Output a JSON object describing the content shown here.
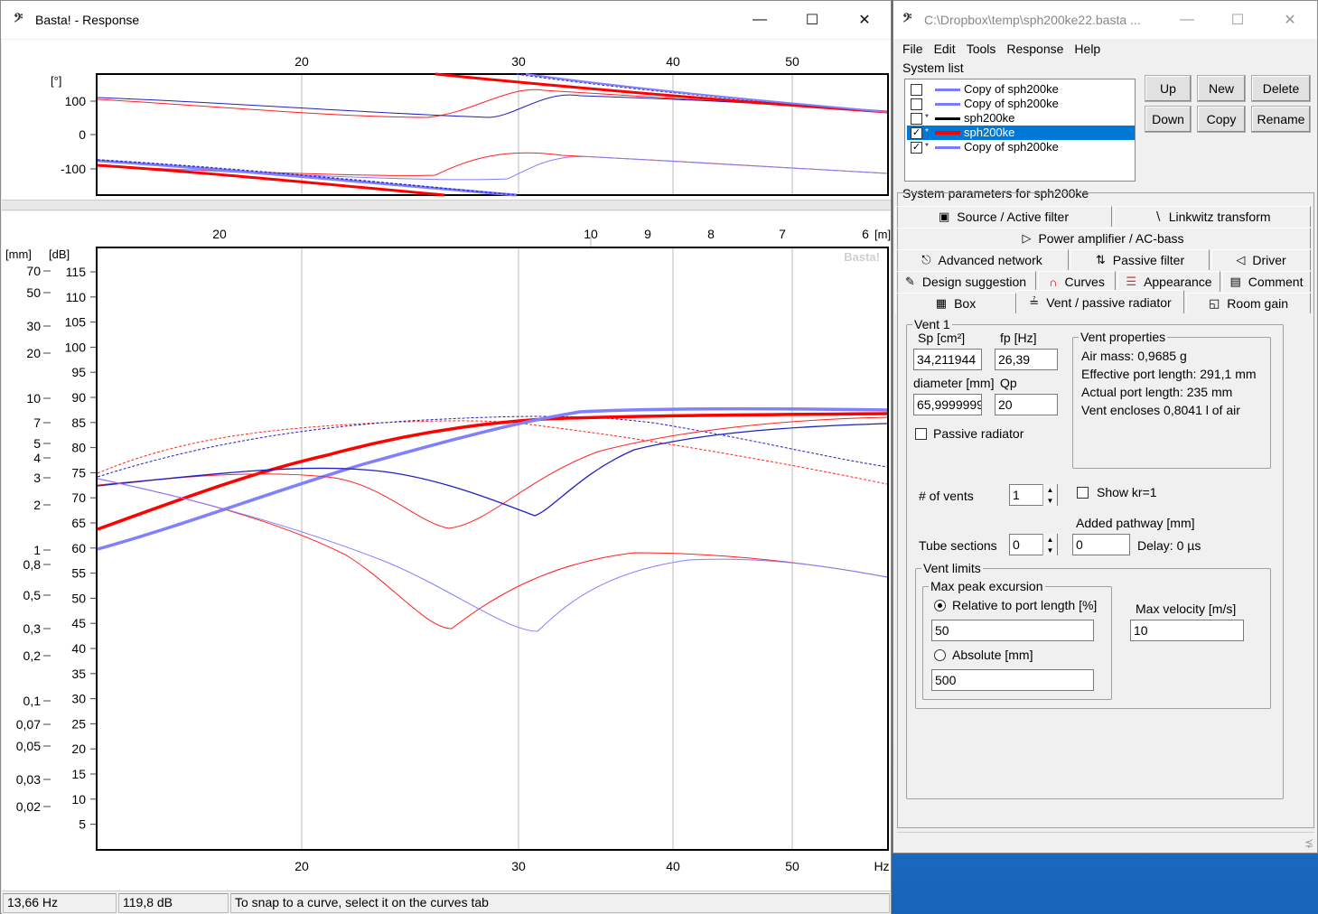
{
  "response_window": {
    "title": "Basta! - Response",
    "watermark": "Basta!",
    "phase_plot": {
      "unit_label": "[°]",
      "x_ticks_top": [
        "20",
        "30",
        "40",
        "50"
      ],
      "y_ticks": [
        "100",
        "0",
        "-100"
      ]
    },
    "main_plot": {
      "top_axis_ticks": [
        "20",
        "10",
        "9",
        "8",
        "7",
        "6"
      ],
      "top_axis_unit": "[m]",
      "left_unit_mm": "[mm]",
      "left_unit_db": "[dB]",
      "mm_ticks": [
        "70",
        "50",
        "30",
        "20",
        "10",
        "7",
        "5",
        "4",
        "3",
        "2",
        "1",
        "0,8",
        "0,5",
        "0,3",
        "0,2",
        "0,1",
        "0,07",
        "0,05",
        "0,03",
        "0,02"
      ],
      "db_ticks": [
        "115",
        "110",
        "105",
        "100",
        "95",
        "90",
        "85",
        "80",
        "75",
        "70",
        "65",
        "60",
        "55",
        "50",
        "45",
        "40",
        "35",
        "30",
        "25",
        "20",
        "15",
        "10",
        "5"
      ],
      "x_ticks": [
        "20",
        "30",
        "40",
        "50"
      ],
      "x_unit": "Hz"
    },
    "status": {
      "freq": "13,66 Hz",
      "level": "119,8 dB",
      "hint": "To snap to a curve, select it on the curves tab"
    }
  },
  "main_window": {
    "title": "C:\\Dropbox\\temp\\sph200ke22.basta ...",
    "menu": [
      "File",
      "Edit",
      "Tools",
      "Response",
      "Help"
    ],
    "system_list": {
      "label": "System list",
      "items": [
        {
          "name": "Copy of sph200ke",
          "checked": false,
          "star": "",
          "color": "#7b7bff",
          "selected": false
        },
        {
          "name": "Copy of sph200ke",
          "checked": false,
          "star": "",
          "color": "#7b7bff",
          "selected": false
        },
        {
          "name": "sph200ke",
          "checked": false,
          "star": "*",
          "color": "#000000",
          "selected": false
        },
        {
          "name": "sph200ke",
          "checked": true,
          "star": "*",
          "color": "#ff0000",
          "selected": true
        },
        {
          "name": "Copy of sph200ke",
          "checked": true,
          "star": "*",
          "color": "#7b7bff",
          "selected": false
        }
      ],
      "buttons": {
        "up": "Up",
        "new": "New",
        "delete": "Delete",
        "down": "Down",
        "copy": "Copy",
        "rename": "Rename"
      }
    },
    "params": {
      "label": "System parameters for sph200ke",
      "tabs": {
        "source": "Source / Active filter",
        "linkwitz": "Linkwitz transform",
        "power": "Power amplifier / AC-bass",
        "advanced": "Advanced network",
        "passive": "Passive filter",
        "driver": "Driver",
        "design": "Design suggestion",
        "curves": "Curves",
        "appearance": "Appearance",
        "comment": "Comment",
        "box": "Box",
        "vent": "Vent / passive radiator",
        "room": "Room gain"
      },
      "vent": {
        "group_label": "Vent 1",
        "sp_label": "Sp [cm²]",
        "sp_value": "34,211944",
        "fp_label": "fp [Hz]",
        "fp_value": "26,39",
        "diameter_label": "diameter [mm]",
        "diameter_value": "65,9999999",
        "qp_label": "Qp",
        "qp_value": "20",
        "passive_radiator": "Passive radiator",
        "props_label": "Vent properties",
        "air_mass": "Air mass: 0,9685 g",
        "eff_length": "Effective port length: 291,1 mm",
        "actual_length": "Actual port length: 235 mm",
        "encloses": "Vent encloses 0,8041 l of air",
        "num_vents_label": "# of vents",
        "num_vents_value": "1",
        "show_kr": "Show kr=1",
        "added_pathway_label": "Added pathway [mm]",
        "tube_sections_label": "Tube sections",
        "tube_sections_value": "0",
        "added_pathway_value": "0",
        "delay": "Delay: 0 µs",
        "limits_label": "Vent limits",
        "max_peak_label": "Max peak excursion",
        "relative_label": "Relative to port length [%]",
        "relative_value": "50",
        "absolute_label": "Absolute [mm]",
        "absolute_value": "500",
        "max_velocity_label": "Max velocity [m/s]",
        "max_velocity_value": "10"
      }
    }
  }
}
